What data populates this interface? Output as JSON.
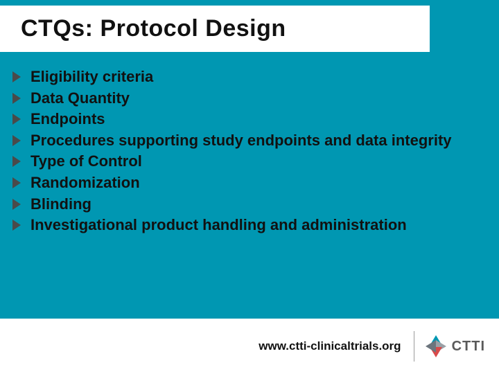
{
  "title": "CTQs: Protocol Design",
  "bullets": [
    "Eligibility criteria",
    "Data Quantity",
    "Endpoints",
    "Procedures supporting study endpoints and data integrity",
    "Type of Control",
    "Randomization",
    "Blinding",
    "Investigational product handling and administration"
  ],
  "footer": {
    "url": "www.ctti-clinicaltrials.org",
    "logo_text": "CTTI"
  },
  "colors": {
    "background_teal": "#0097b2",
    "text": "#111111",
    "bullet_triangle": "#4a4a4a",
    "divider": "#9a9a9a",
    "logo_top": "#0097b2",
    "logo_right": "#9aa0a6",
    "logo_bottom": "#d94a4a",
    "logo_left": "#6c757d",
    "logo_text_color": "#5a5a5a"
  }
}
